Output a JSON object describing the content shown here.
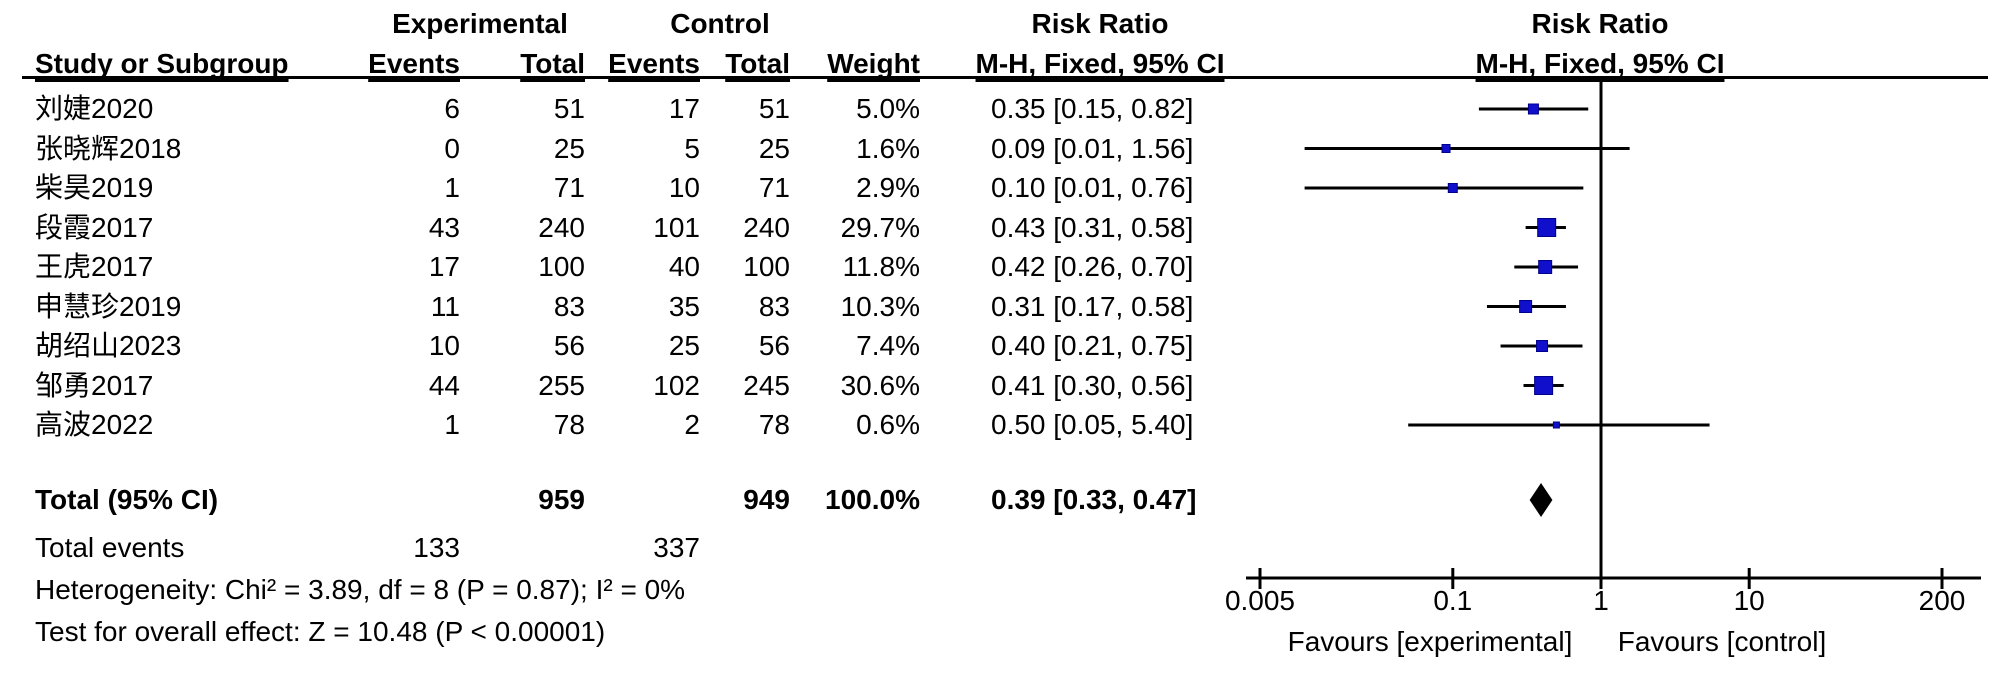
{
  "headers": {
    "exp_group": "Experimental",
    "ctrl_group": "Control",
    "risk_ratio": "Risk Ratio",
    "study": "Study or Subgroup",
    "events": "Events",
    "total": "Total",
    "weight": "Weight",
    "mh": "M-H, Fixed, 95% CI"
  },
  "colors": {
    "marker_blue": "#0f0fcc",
    "marker_blue_dark": "#00008b",
    "line_black": "#000000",
    "diamond_black": "#000000"
  },
  "chart_data": {
    "type": "forest",
    "effect_measure": "Risk Ratio",
    "method": "M-H, Fixed, 95% CI",
    "x_scale": "log",
    "x_ticks": [
      {
        "value": 0.005,
        "label": "0.005"
      },
      {
        "value": 0.1,
        "label": "0.1"
      },
      {
        "value": 1,
        "label": "1"
      },
      {
        "value": 10,
        "label": "10"
      },
      {
        "value": 200,
        "label": "200"
      }
    ],
    "favours_left": "Favours [experimental]",
    "favours_right": "Favours [control]",
    "studies": [
      {
        "label": "刘婕2020",
        "exp_events": "6",
        "exp_total": "51",
        "ctrl_events": "17",
        "ctrl_total": "51",
        "weight": "5.0%",
        "rr_text": "0.35 [0.15, 0.82]",
        "rr": 0.35,
        "ci_low": 0.15,
        "ci_high": 0.82
      },
      {
        "label": "张晓辉2018",
        "exp_events": "0",
        "exp_total": "25",
        "ctrl_events": "5",
        "ctrl_total": "25",
        "weight": "1.6%",
        "rr_text": "0.09 [0.01, 1.56]",
        "rr": 0.09,
        "ci_low": 0.01,
        "ci_high": 1.56
      },
      {
        "label": "柴昊2019",
        "exp_events": "1",
        "exp_total": "71",
        "ctrl_events": "10",
        "ctrl_total": "71",
        "weight": "2.9%",
        "rr_text": "0.10 [0.01, 0.76]",
        "rr": 0.1,
        "ci_low": 0.01,
        "ci_high": 0.76
      },
      {
        "label": "段霞2017",
        "exp_events": "43",
        "exp_total": "240",
        "ctrl_events": "101",
        "ctrl_total": "240",
        "weight": "29.7%",
        "rr_text": "0.43 [0.31, 0.58]",
        "rr": 0.43,
        "ci_low": 0.31,
        "ci_high": 0.58
      },
      {
        "label": "王虎2017",
        "exp_events": "17",
        "exp_total": "100",
        "ctrl_events": "40",
        "ctrl_total": "100",
        "weight": "11.8%",
        "rr_text": "0.42 [0.26, 0.70]",
        "rr": 0.42,
        "ci_low": 0.26,
        "ci_high": 0.7
      },
      {
        "label": "申慧珍2019",
        "exp_events": "11",
        "exp_total": "83",
        "ctrl_events": "35",
        "ctrl_total": "83",
        "weight": "10.3%",
        "rr_text": "0.31 [0.17, 0.58]",
        "rr": 0.31,
        "ci_low": 0.17,
        "ci_high": 0.58
      },
      {
        "label": "胡绍山2023",
        "exp_events": "10",
        "exp_total": "56",
        "ctrl_events": "25",
        "ctrl_total": "56",
        "weight": "7.4%",
        "rr_text": "0.40 [0.21, 0.75]",
        "rr": 0.4,
        "ci_low": 0.21,
        "ci_high": 0.75
      },
      {
        "label": "邹勇2017",
        "exp_events": "44",
        "exp_total": "255",
        "ctrl_events": "102",
        "ctrl_total": "245",
        "weight": "30.6%",
        "rr_text": "0.41 [0.30, 0.56]",
        "rr": 0.41,
        "ci_low": 0.3,
        "ci_high": 0.56
      },
      {
        "label": "高波2022",
        "exp_events": "1",
        "exp_total": "78",
        "ctrl_events": "2",
        "ctrl_total": "78",
        "weight": "0.6%",
        "rr_text": "0.50 [0.05, 5.40]",
        "rr": 0.5,
        "ci_low": 0.05,
        "ci_high": 5.4
      }
    ],
    "total": {
      "label": "Total (95% CI)",
      "exp_total": "959",
      "ctrl_total": "949",
      "weight": "100.0%",
      "rr_text": "0.39 [0.33, 0.47]",
      "rr": 0.39,
      "ci_low": 0.33,
      "ci_high": 0.47
    },
    "total_events": {
      "label": "Total events",
      "exp": "133",
      "ctrl": "337"
    },
    "heterogeneity": "Heterogeneity: Chi² = 3.89, df = 8 (P = 0.87); I² = 0%",
    "overall_effect": "Test for overall effect: Z = 10.48 (P < 0.00001)"
  }
}
